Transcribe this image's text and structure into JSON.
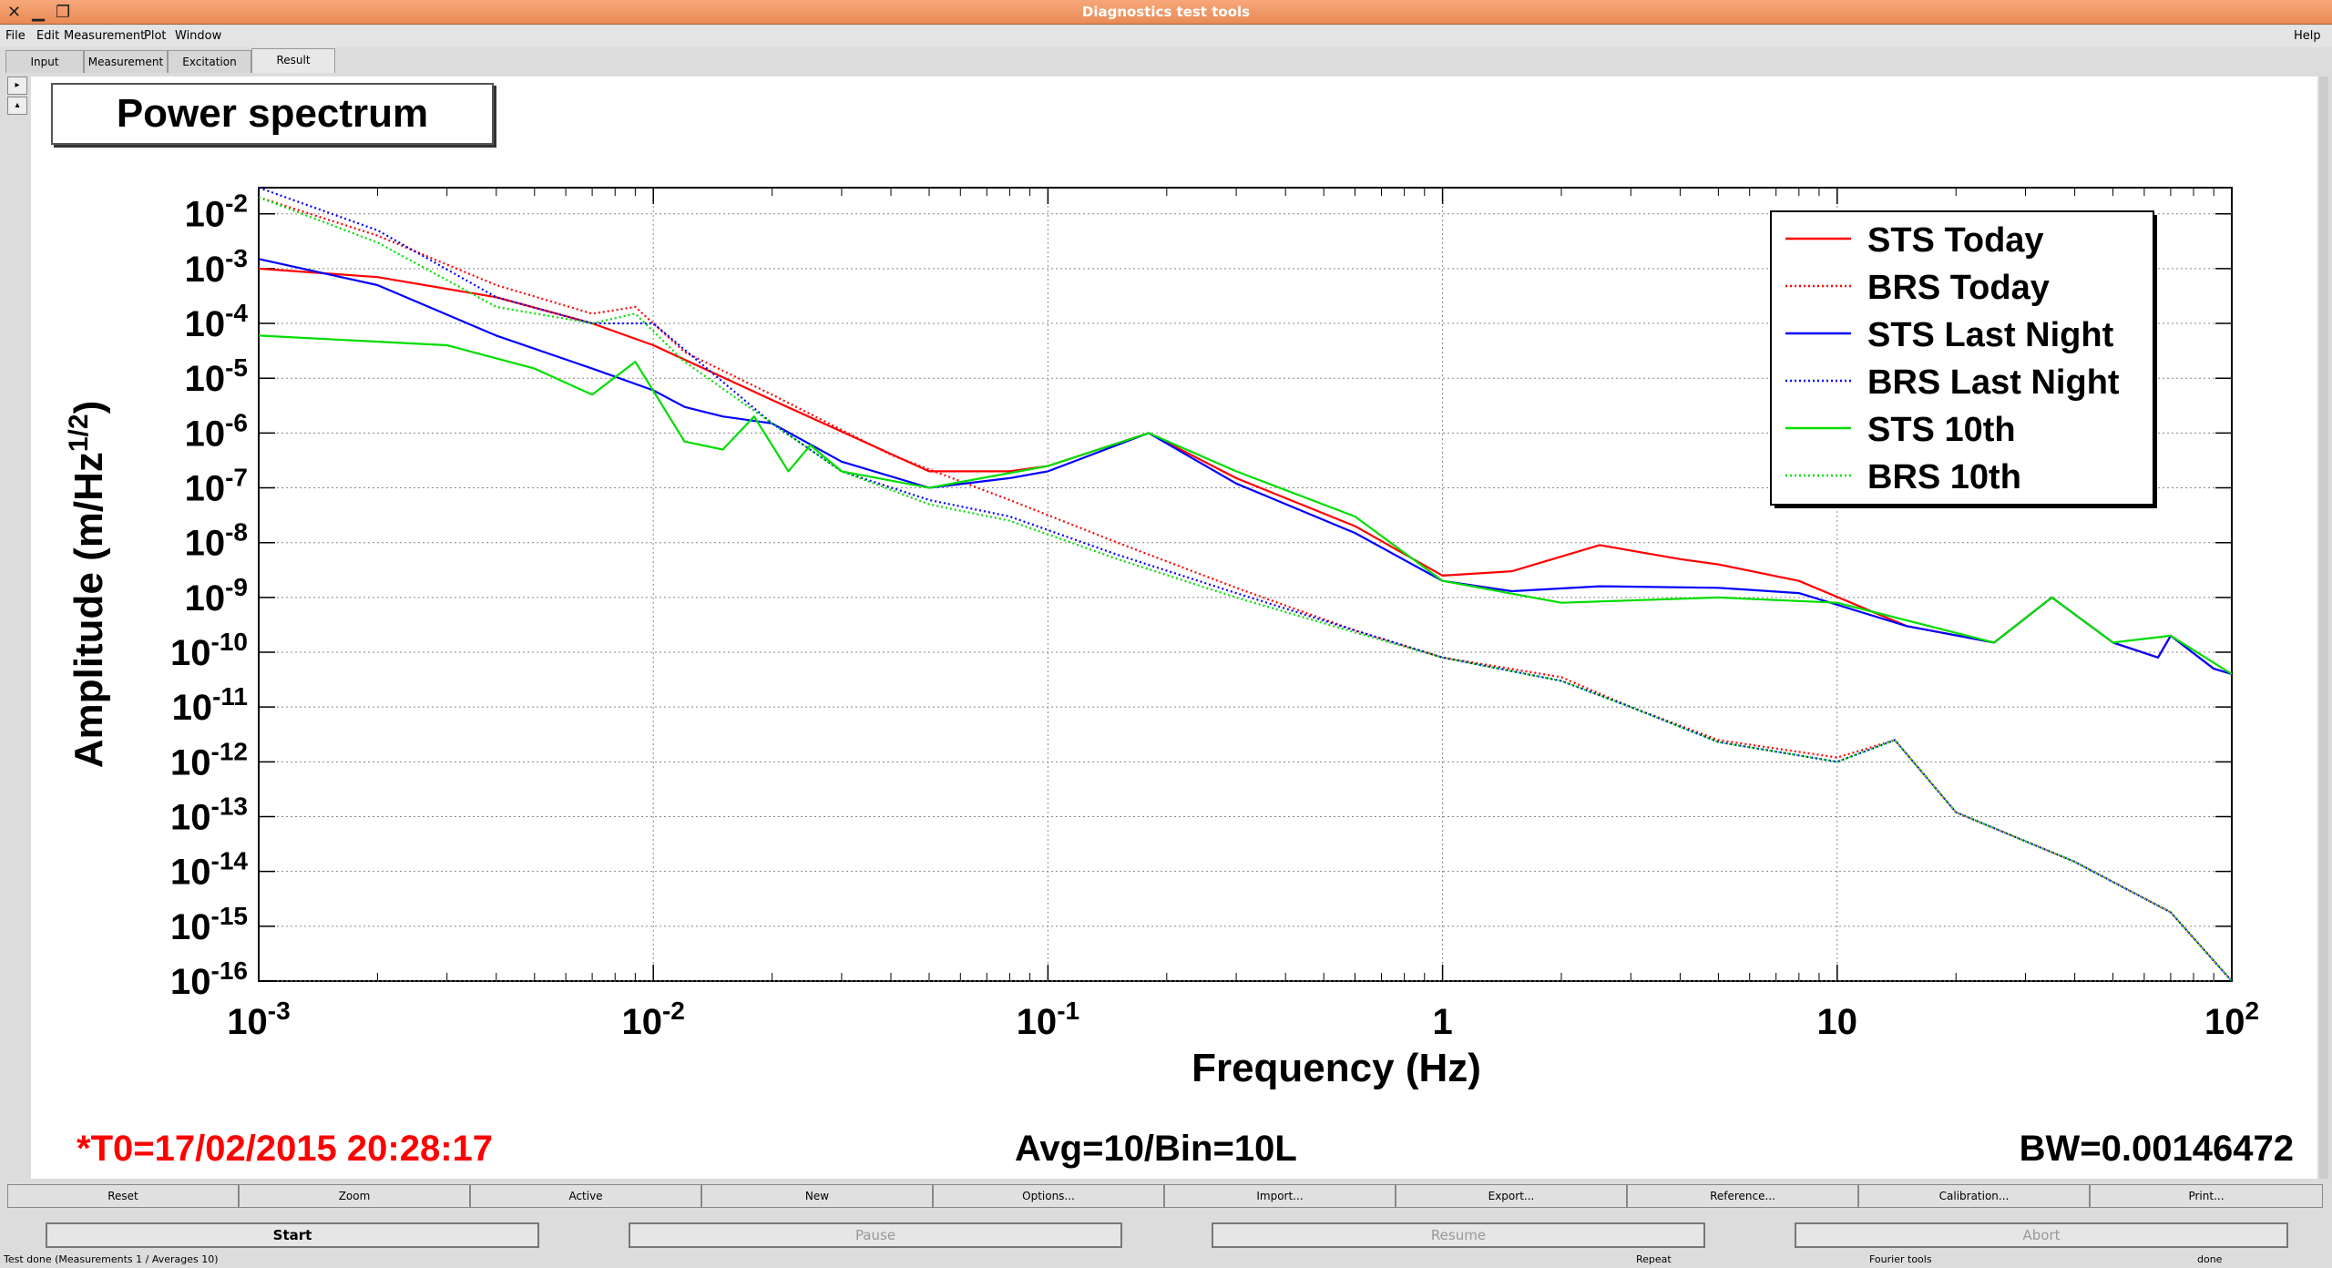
{
  "window": {
    "title": "Diagnostics test tools",
    "help": "Help"
  },
  "menu": [
    "File",
    "Edit",
    "Measurement",
    "Plot",
    "Window"
  ],
  "tabs": [
    "Input",
    "Measurement",
    "Excitation",
    "Result"
  ],
  "panel_title": "Power spectrum",
  "info": {
    "t0": "*T0=17/02/2015 20:28:17",
    "avg": "Avg=10/Bin=10L",
    "bw": "BW=0.00146472"
  },
  "buttons_row1": [
    "Reset",
    "Zoom",
    "Active",
    "New",
    "Options...",
    "Import...",
    "Export...",
    "Reference...",
    "Calibration...",
    "Print..."
  ],
  "buttons_row2": [
    "Start",
    "Pause",
    "Resume",
    "Abort"
  ],
  "status": [
    "Test done (Measurements 1 / Averages 10)",
    "Repeat",
    "Fourier tools",
    "done"
  ],
  "colors": {
    "red": "#ff0000",
    "blue": "#0000ff",
    "green": "#00dd00"
  },
  "chart_data": {
    "type": "line",
    "xlabel": "Frequency (Hz)",
    "ylabel": "Amplitude (m/Hz^1/2)",
    "x_scale": "log",
    "y_scale": "log",
    "xlim": [
      0.001,
      100
    ],
    "ylim": [
      1e-16,
      0.03
    ],
    "grid": true,
    "legend_position": "top-right",
    "x_ticks": [
      "10^-3",
      "10^-2",
      "10^-1",
      "1",
      "10",
      "10^2"
    ],
    "y_ticks": [
      "10^-2",
      "10^-3",
      "10^-4",
      "10^-5",
      "10^-6",
      "10^-7",
      "10^-8",
      "10^-9",
      "10^-10",
      "10^-11",
      "10^-12",
      "10^-13",
      "10^-14",
      "10^-15",
      "10^-16"
    ],
    "series": [
      {
        "name": "STS Today",
        "color": "#ff0000",
        "style": "solid",
        "x": [
          0.001,
          0.002,
          0.004,
          0.007,
          0.01,
          0.02,
          0.05,
          0.08,
          0.1,
          0.18,
          0.3,
          0.6,
          1,
          1.5,
          2.5,
          4,
          5,
          8,
          15,
          25,
          35,
          50,
          65,
          70,
          90,
          100
        ],
        "y": [
          0.001,
          0.0007,
          0.0003,
          0.0001,
          4e-05,
          4e-06,
          2e-07,
          2e-07,
          2.5e-07,
          1e-06,
          1.5e-07,
          2e-08,
          2.5e-09,
          3e-09,
          9e-09,
          5e-09,
          4e-09,
          2e-09,
          3e-10,
          1.5e-10,
          1e-09,
          1.5e-10,
          8e-11,
          2e-10,
          5e-11,
          4e-11
        ]
      },
      {
        "name": "BRS Today",
        "color": "#ff0000",
        "style": "dotted",
        "x": [
          0.001,
          0.002,
          0.004,
          0.007,
          0.009,
          0.012,
          0.02,
          0.04,
          0.08,
          0.15,
          0.3,
          0.6,
          1,
          2,
          3,
          5,
          10,
          14,
          20,
          40,
          70,
          100
        ],
        "y": [
          0.02,
          0.004,
          0.0005,
          0.00015,
          0.0002,
          3e-05,
          5e-06,
          4e-07,
          6e-08,
          1e-08,
          1.5e-09,
          2.5e-10,
          8e-11,
          3.5e-11,
          1e-11,
          2.5e-12,
          1.2e-12,
          2.5e-12,
          1.2e-13,
          1.5e-14,
          1.8e-15,
          1e-16
        ]
      },
      {
        "name": "STS Last Night",
        "color": "#0000ff",
        "style": "solid",
        "x": [
          0.001,
          0.002,
          0.004,
          0.007,
          0.01,
          0.012,
          0.015,
          0.02,
          0.03,
          0.05,
          0.08,
          0.1,
          0.18,
          0.3,
          0.6,
          1,
          1.5,
          2.5,
          5,
          8,
          15,
          25,
          35,
          50,
          65,
          70,
          90,
          100
        ],
        "y": [
          0.0015,
          0.0005,
          6e-05,
          1.5e-05,
          6e-06,
          3e-06,
          2e-06,
          1.5e-06,
          3e-07,
          1e-07,
          1.5e-07,
          2e-07,
          1e-06,
          1.2e-07,
          1.5e-08,
          2e-09,
          1.3e-09,
          1.6e-09,
          1.5e-09,
          1.2e-09,
          3e-10,
          1.5e-10,
          1e-09,
          1.5e-10,
          8e-11,
          2e-10,
          5e-11,
          4e-11
        ]
      },
      {
        "name": "BRS Last Night",
        "color": "#0000ff",
        "style": "dotted",
        "x": [
          0.001,
          0.002,
          0.004,
          0.007,
          0.01,
          0.02,
          0.03,
          0.05,
          0.08,
          0.15,
          0.3,
          0.6,
          1,
          2,
          3,
          5,
          10,
          14,
          20,
          40,
          70,
          100
        ],
        "y": [
          0.03,
          0.005,
          0.0003,
          0.0001,
          0.0001,
          1.5e-06,
          2e-07,
          6e-08,
          3e-08,
          6e-09,
          1.2e-09,
          2.5e-10,
          8e-11,
          3e-11,
          1e-11,
          2.3e-12,
          1e-12,
          2.5e-12,
          1.2e-13,
          1.5e-14,
          1.8e-15,
          1e-16
        ]
      },
      {
        "name": "STS 10th",
        "color": "#00dd00",
        "style": "solid",
        "x": [
          0.001,
          0.003,
          0.005,
          0.007,
          0.009,
          0.012,
          0.015,
          0.018,
          0.022,
          0.025,
          0.03,
          0.05,
          0.1,
          0.18,
          0.3,
          0.6,
          1,
          2,
          5,
          10,
          25,
          35,
          50,
          70,
          100
        ],
        "y": [
          6e-05,
          4e-05,
          1.5e-05,
          5e-06,
          2e-05,
          7e-07,
          5e-07,
          2e-06,
          2e-07,
          6e-07,
          2e-07,
          1e-07,
          2.5e-07,
          1e-06,
          2e-07,
          3e-08,
          2e-09,
          8e-10,
          1e-09,
          8e-10,
          1.5e-10,
          1e-09,
          1.5e-10,
          2e-10,
          4e-11
        ]
      },
      {
        "name": "BRS 10th",
        "color": "#00dd00",
        "style": "dotted",
        "x": [
          0.001,
          0.002,
          0.004,
          0.007,
          0.009,
          0.012,
          0.02,
          0.03,
          0.05,
          0.08,
          0.15,
          0.3,
          0.6,
          1,
          2,
          3,
          5,
          10,
          14,
          20,
          40,
          70,
          100
        ],
        "y": [
          0.02,
          0.003,
          0.0002,
          0.0001,
          0.00015,
          2e-05,
          1.5e-06,
          2e-07,
          5e-08,
          2.5e-08,
          5e-09,
          1e-09,
          2.3e-10,
          8e-11,
          3e-11,
          1e-11,
          2.3e-12,
          1e-12,
          2.5e-12,
          1.2e-13,
          1.5e-14,
          1.8e-15,
          1e-16
        ]
      }
    ]
  }
}
